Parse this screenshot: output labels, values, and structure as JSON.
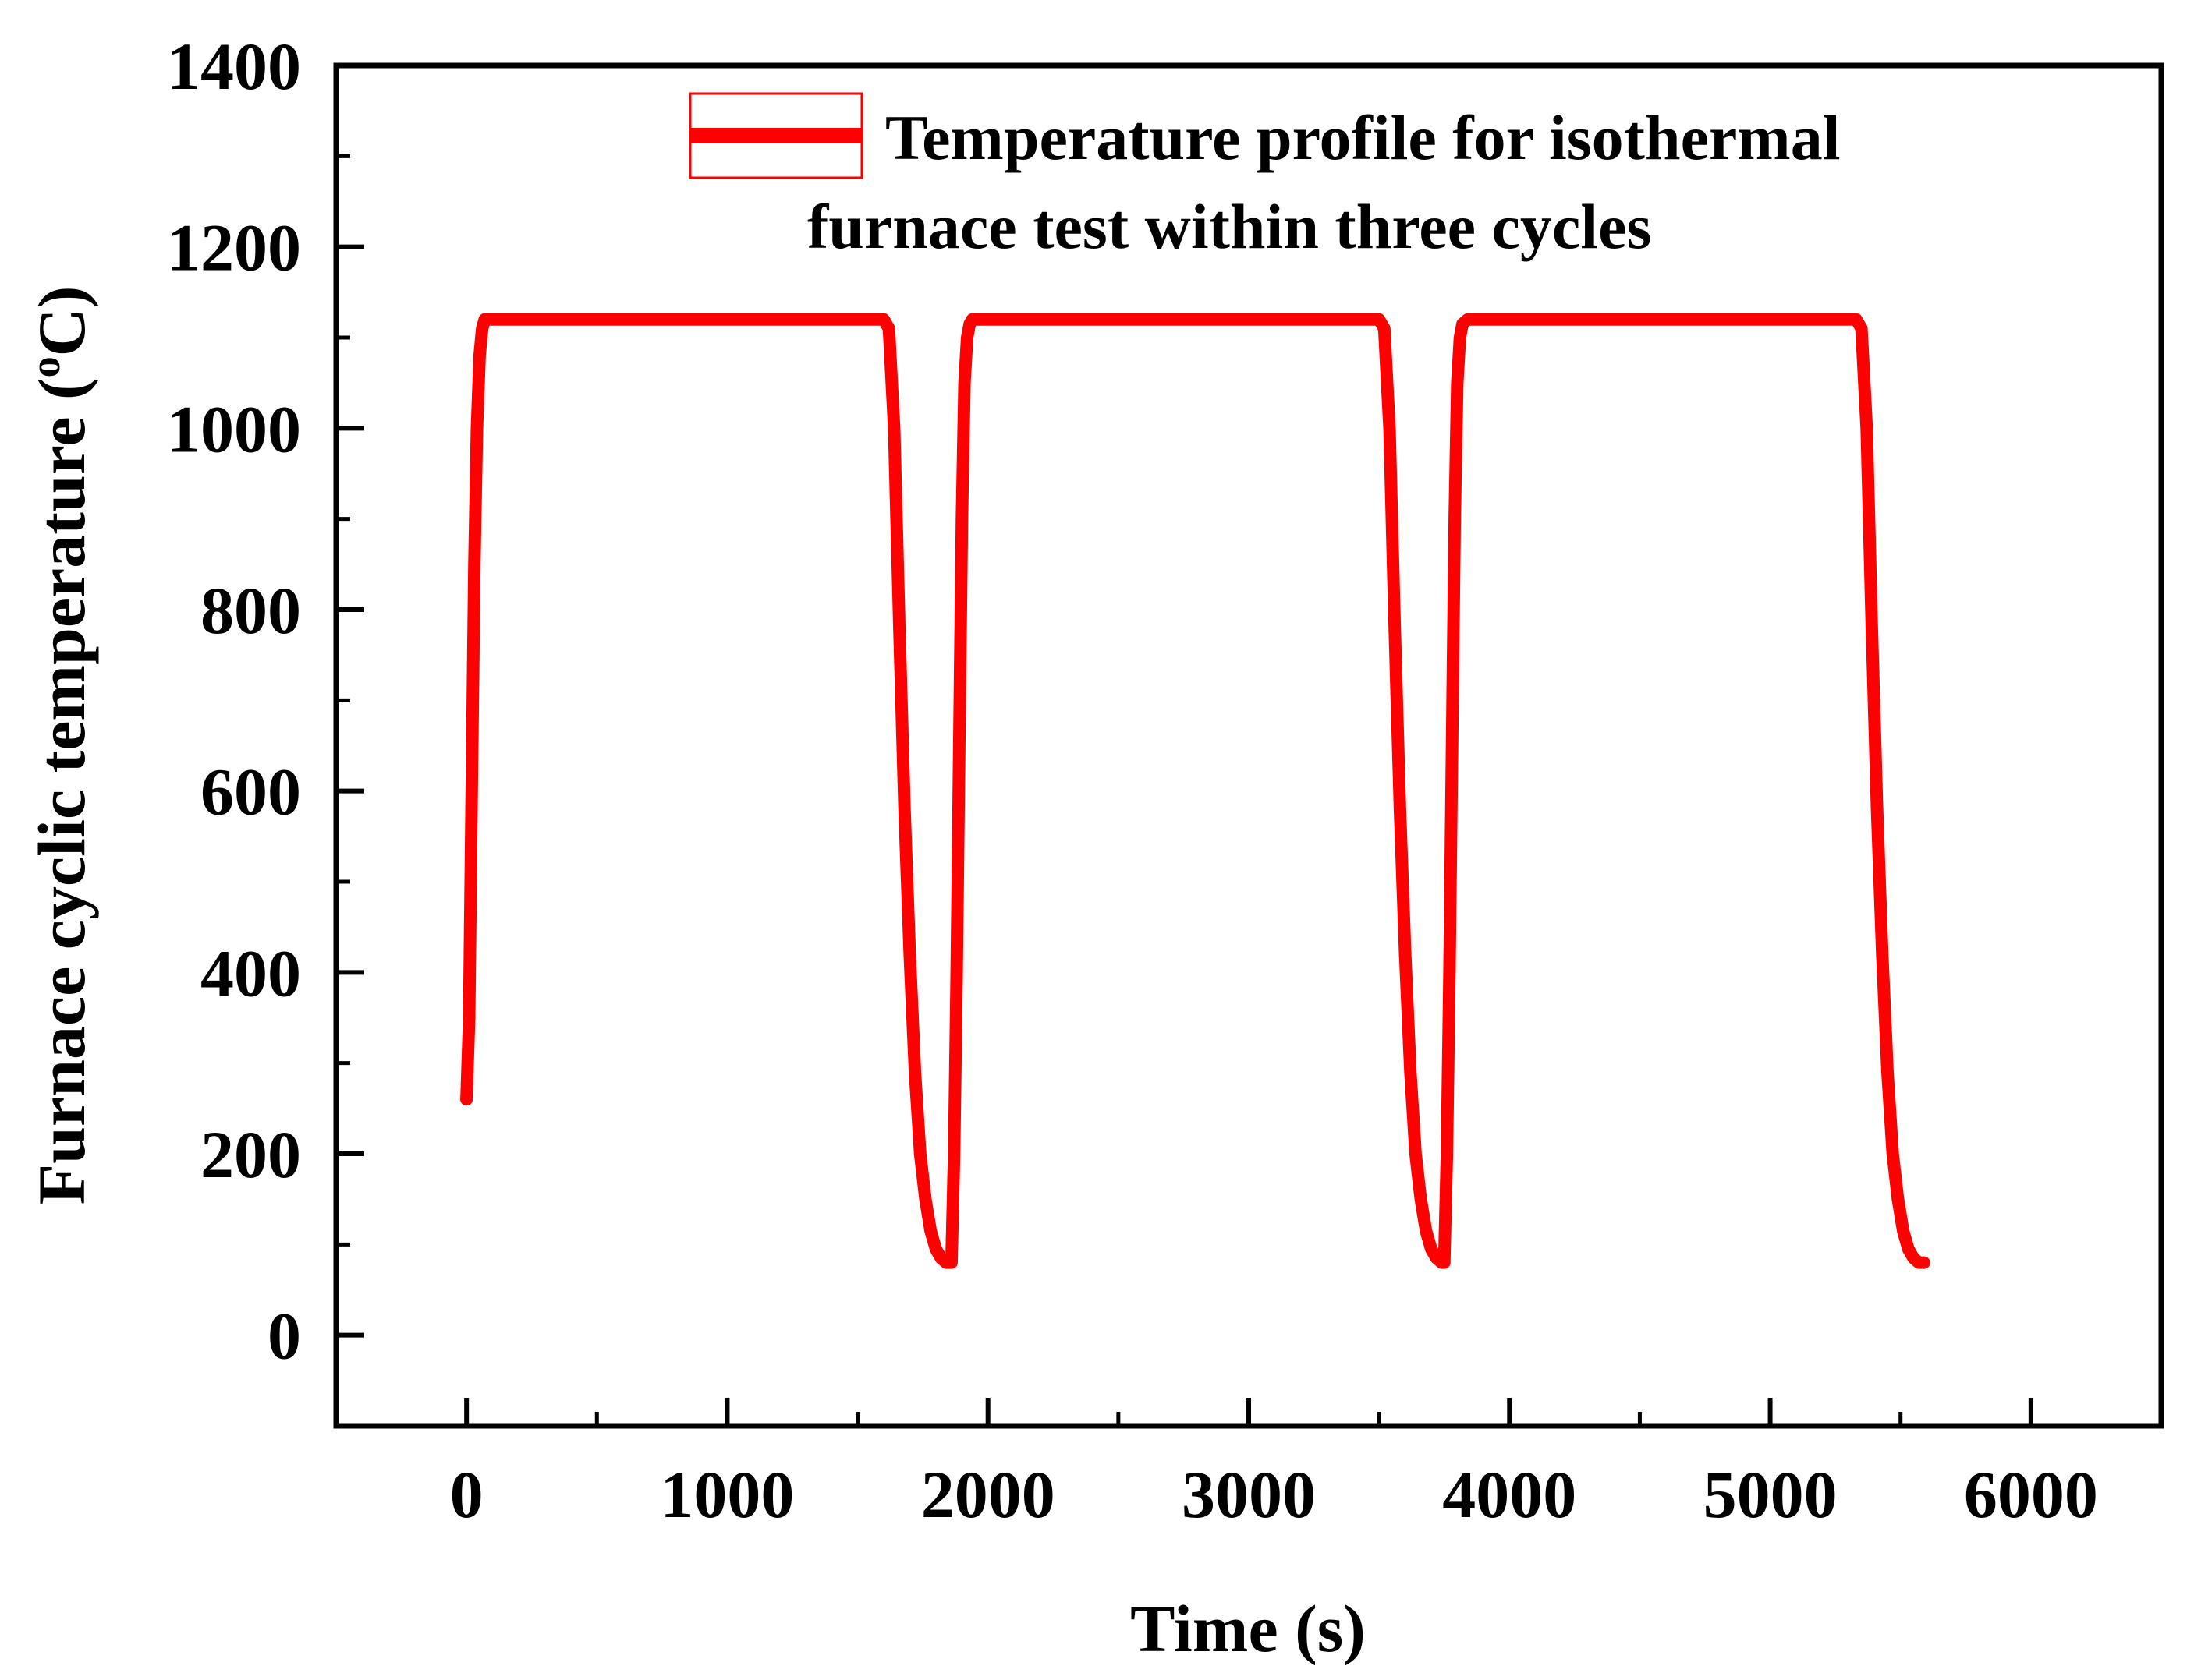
{
  "chart_data": {
    "type": "line",
    "title": "",
    "xlabel": "Time (s)",
    "ylabel_main": "Furnace cyclic temperature (",
    "ylabel_sup": "o",
    "ylabel_end": "C)",
    "xlim": [
      -500,
      6500
    ],
    "ylim": [
      -100,
      1400
    ],
    "xticks": [
      0,
      1000,
      2000,
      3000,
      4000,
      5000,
      6000
    ],
    "xtick_labels": [
      "0",
      "1000",
      "2000",
      "3000",
      "4000",
      "5000",
      "6000"
    ],
    "yticks": [
      0,
      200,
      400,
      600,
      800,
      1000,
      1200,
      1400
    ],
    "ytick_labels": [
      "0",
      "200",
      "400",
      "600",
      "800",
      "1000",
      "1200",
      "1400"
    ],
    "legend": {
      "position": "top-right",
      "line1": "Temperature profile for isothermal",
      "line2": "furnace test within three cycles"
    },
    "series": [
      {
        "name": "Temperature profile for isothermal furnace test within three cycles",
        "color": "#ff0000",
        "x": [
          0,
          10,
          20,
          30,
          40,
          50,
          60,
          70,
          80,
          90,
          100,
          1600,
          1620,
          1640,
          1660,
          1680,
          1700,
          1720,
          1740,
          1760,
          1780,
          1800,
          1820,
          1840,
          1860,
          1870,
          1880,
          1890,
          1900,
          1910,
          1920,
          1930,
          1940,
          1960,
          3500,
          3520,
          3540,
          3560,
          3580,
          3600,
          3620,
          3640,
          3660,
          3680,
          3700,
          3720,
          3740,
          3750,
          3760,
          3770,
          3780,
          3790,
          3800,
          3810,
          3820,
          3840,
          5330,
          5350,
          5370,
          5390,
          5410,
          5430,
          5450,
          5470,
          5490,
          5510,
          5530,
          5550,
          5570,
          5590
        ],
        "y": [
          260,
          350,
          600,
          850,
          1000,
          1080,
          1110,
          1120,
          1120,
          1120,
          1120,
          1120,
          1110,
          1000,
          780,
          580,
          420,
          290,
          200,
          150,
          115,
          95,
          85,
          80,
          80,
          200,
          400,
          650,
          900,
          1050,
          1100,
          1115,
          1120,
          1120,
          1120,
          1110,
          1000,
          780,
          580,
          420,
          290,
          200,
          150,
          115,
          95,
          85,
          80,
          80,
          200,
          400,
          650,
          900,
          1050,
          1100,
          1115,
          1120,
          1120,
          1110,
          1000,
          780,
          580,
          420,
          290,
          200,
          150,
          115,
          95,
          85,
          80,
          80
        ]
      }
    ]
  }
}
